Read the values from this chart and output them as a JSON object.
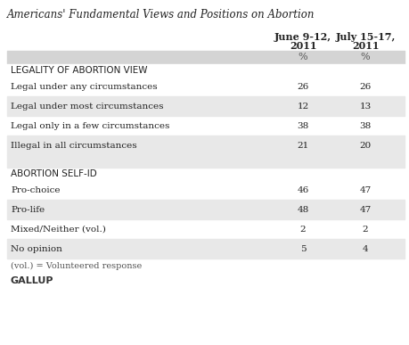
{
  "title": "Americans' Fundamental Views and Positions on Abortion",
  "col1_header_line1": "June 9-12,",
  "col1_header_line2": "2011",
  "col2_header_line1": "July 15-17,",
  "col2_header_line2": "2011",
  "col_unit": "%",
  "section1_header": "LEGALITY OF ABORTION VIEW",
  "section2_header": "ABORTION SELF-ID",
  "rows": [
    {
      "label": "Legal under any circumstances",
      "v1": "26",
      "v2": "26",
      "shaded": false,
      "is_gap": false
    },
    {
      "label": "Legal under most circumstances",
      "v1": "12",
      "v2": "13",
      "shaded": true,
      "is_gap": false
    },
    {
      "label": "Legal only in a few circumstances",
      "v1": "38",
      "v2": "38",
      "shaded": false,
      "is_gap": false
    },
    {
      "label": "Illegal in all circumstances",
      "v1": "21",
      "v2": "20",
      "shaded": true,
      "is_gap": false
    },
    {
      "label": "",
      "v1": "",
      "v2": "",
      "shaded": true,
      "is_gap": true
    },
    {
      "label": "Pro-choice",
      "v1": "46",
      "v2": "47",
      "shaded": false,
      "is_gap": false
    },
    {
      "label": "Pro-life",
      "v1": "48",
      "v2": "47",
      "shaded": true,
      "is_gap": false
    },
    {
      "label": "Mixed/Neither (vol.)",
      "v1": "2",
      "v2": "2",
      "shaded": false,
      "is_gap": false
    },
    {
      "label": "No opinion",
      "v1": "5",
      "v2": "4",
      "shaded": true,
      "is_gap": false
    }
  ],
  "footnote": "(vol.) = Volunteered response",
  "source": "GALLUP",
  "bg_color": "#ffffff",
  "shaded_color": "#e8e8e8",
  "header_shaded_color": "#d4d4d4",
  "text_color": "#222222",
  "title_color": "#222222"
}
